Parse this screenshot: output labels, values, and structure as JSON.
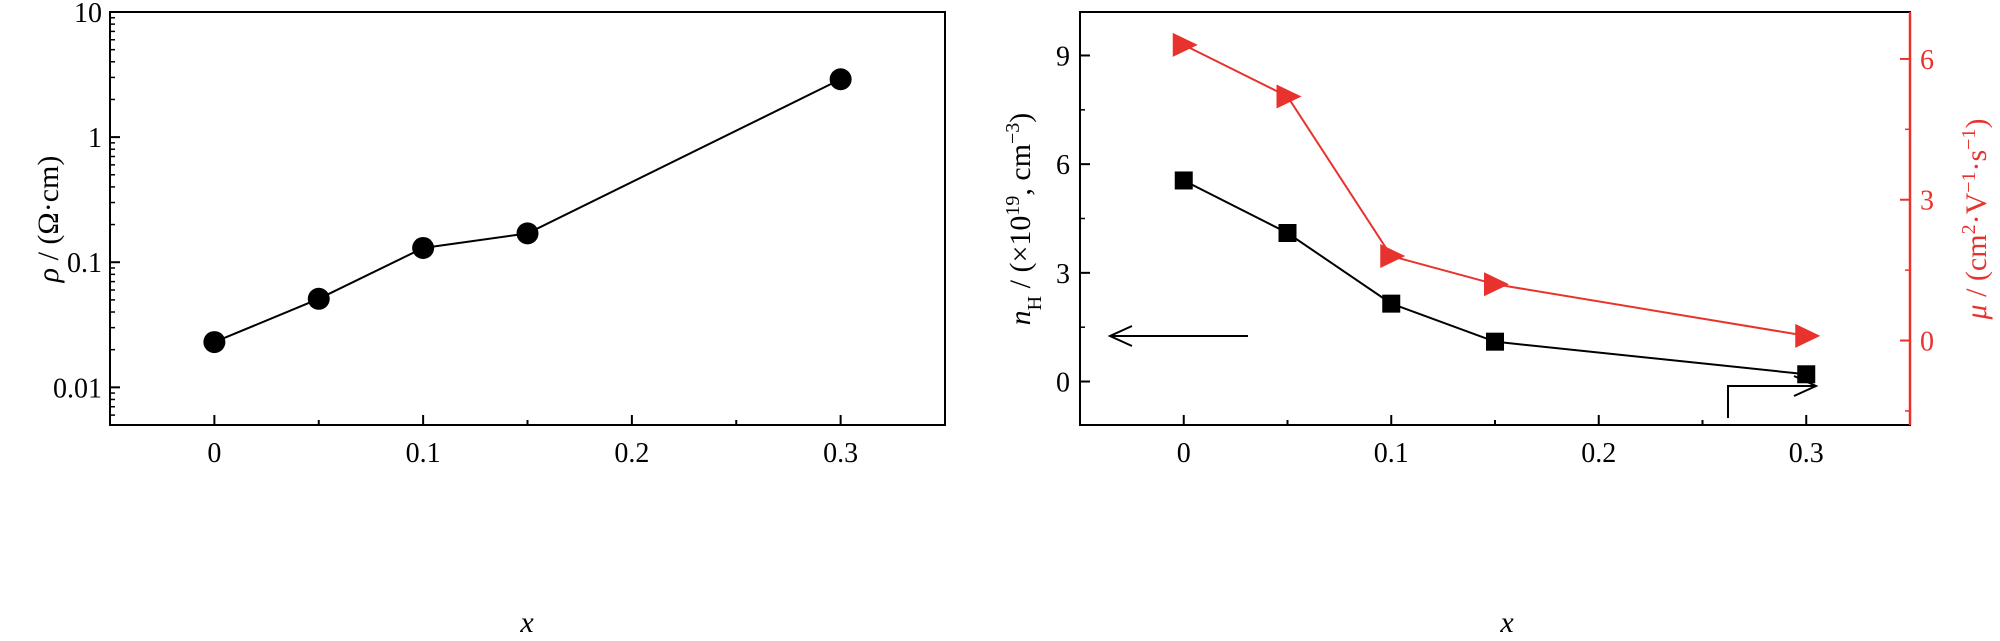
{
  "colors": {
    "black_series": "#000000",
    "red_series": "#e8322d"
  },
  "chart_data": [
    {
      "type": "line",
      "yscale": "log",
      "x": [
        0,
        0.05,
        0.1,
        0.15,
        0.3
      ],
      "series": [
        {
          "values": [
            0.023,
            0.051,
            0.13,
            0.17,
            2.9
          ],
          "color": "#000000",
          "marker": "circle"
        }
      ],
      "xlim": [
        -0.05,
        0.35
      ],
      "ylim": [
        0.005,
        10
      ],
      "xticks": [
        0,
        0.1,
        0.2,
        0.3
      ],
      "xtick_labels": [
        "0",
        "0.1",
        "0.2",
        "0.3"
      ],
      "yticks": [
        0.01,
        0.1,
        1,
        10
      ],
      "ytick_labels": [
        "0.01",
        "0.1",
        "1",
        "10"
      ],
      "xlabel": "x",
      "ylabel": {
        "sym": "ρ",
        "rest": " / (Ω·cm)"
      },
      "grid": false
    },
    {
      "type": "line",
      "x": [
        0,
        0.05,
        0.1,
        0.15,
        0.3
      ],
      "series": [
        {
          "axis": "left",
          "values": [
            5.55,
            4.1,
            2.15,
            1.1,
            0.2
          ],
          "color": "#000000",
          "marker": "square"
        },
        {
          "axis": "right",
          "values": [
            6.3,
            5.2,
            1.8,
            1.2,
            0.1
          ],
          "color": "#e8322d",
          "marker": "triangle-right"
        }
      ],
      "xlim": [
        -0.05,
        0.35
      ],
      "ylim_left": [
        -1.2,
        10.2
      ],
      "ylim_right": [
        -1.8,
        7.0
      ],
      "xticks": [
        0,
        0.1,
        0.2,
        0.3
      ],
      "xtick_labels": [
        "0",
        "0.1",
        "0.2",
        "0.3"
      ],
      "yticks_left": [
        0,
        3,
        6,
        9
      ],
      "ytick_labels_left": [
        "0",
        "3",
        "6",
        "9"
      ],
      "yticks_right": [
        0,
        3,
        6
      ],
      "ytick_labels_right": [
        "0",
        "3",
        "6"
      ],
      "xlabel": "x",
      "ylabel_left": {
        "sym": "n",
        "sub": "H",
        "a": " / (×10",
        "sup": "19",
        "b": ", cm",
        "sup2": "−3",
        "c": ")"
      },
      "ylabel_right": {
        "sym": "μ",
        "a": " / (cm",
        "sup": "2",
        "b": "·V",
        "sup2": "−1",
        "c": "·s",
        "sup3": "−1",
        "d": ")"
      },
      "annotations": [
        {
          "type": "arrow",
          "direction": "left",
          "points_to": "left-axis"
        },
        {
          "type": "arrow",
          "direction": "right",
          "points_to": "right-axis"
        }
      ],
      "grid": false
    }
  ]
}
